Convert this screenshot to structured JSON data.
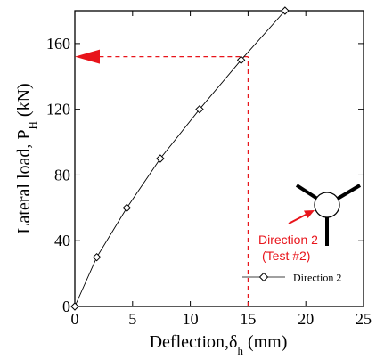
{
  "chart_data": {
    "type": "line",
    "xlabel_main": "Deflection,",
    "xlabel_symbol": "δ",
    "xlabel_sub": "h",
    "xlabel_unit": "(mm)",
    "ylabel_main": "Lateral load, P",
    "ylabel_sub": "H",
    "ylabel_unit": "(kN)",
    "xlim": [
      0,
      25
    ],
    "ylim": [
      0,
      180
    ],
    "x_ticks": [
      0,
      5,
      10,
      15,
      20,
      25
    ],
    "y_ticks": [
      0,
      40,
      80,
      120,
      160
    ],
    "grid": false,
    "legend_position": "bottom-right",
    "series": [
      {
        "name": "Direction 2",
        "marker": "diamond",
        "color": "#000000",
        "x": [
          0,
          1.9,
          4.5,
          7.4,
          10.8,
          14.4,
          18.2
        ],
        "y": [
          0,
          30,
          60,
          90,
          120,
          150,
          180
        ]
      }
    ],
    "annotation": {
      "text_line1": "Direction 2",
      "text_line2": "(Test #2)",
      "color": "#e8141b",
      "guide_x": 15,
      "guide_y": 152
    }
  }
}
